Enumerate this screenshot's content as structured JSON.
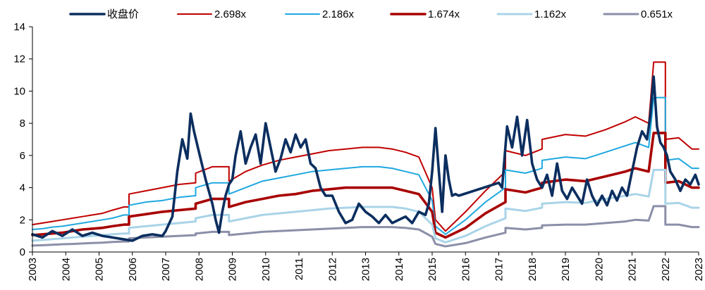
{
  "chart_data": {
    "type": "line",
    "x_unit": "year",
    "xlim": [
      2003,
      2023
    ],
    "ylim": [
      0,
      14
    ],
    "x_ticks": [
      "2003",
      "2004",
      "2005",
      "2006",
      "2007",
      "2008",
      "2009",
      "2010",
      "2011",
      "2012",
      "2013",
      "2014",
      "2015",
      "2016",
      "2017",
      "2018",
      "2019",
      "2020",
      "2021",
      "2022",
      "2023"
    ],
    "y_ticks": [
      "0",
      "2",
      "4",
      "6",
      "8",
      "10",
      "12",
      "14"
    ],
    "grid": false,
    "legend_position": "top",
    "series": [
      {
        "name": "收盘价",
        "color": "#0b2e5f",
        "width": 3.6,
        "x": [
          2003.0,
          2003.3,
          2003.6,
          2003.9,
          2004.2,
          2004.5,
          2004.8,
          2005.1,
          2005.4,
          2005.7,
          2006.0,
          2006.3,
          2006.6,
          2006.9,
          2007.0,
          2007.2,
          2007.35,
          2007.5,
          2007.65,
          2007.75,
          2007.85,
          2008.0,
          2008.2,
          2008.4,
          2008.5,
          2008.6,
          2008.7,
          2008.8,
          2008.9,
          2009.0,
          2009.1,
          2009.25,
          2009.4,
          2009.55,
          2009.7,
          2009.85,
          2010.0,
          2010.15,
          2010.3,
          2010.45,
          2010.6,
          2010.75,
          2010.9,
          2011.05,
          2011.2,
          2011.35,
          2011.5,
          2011.65,
          2011.8,
          2012.0,
          2012.2,
          2012.4,
          2012.6,
          2012.8,
          2013.0,
          2013.2,
          2013.4,
          2013.6,
          2013.8,
          2014.0,
          2014.2,
          2014.4,
          2014.6,
          2014.8,
          2014.9,
          2015.0,
          2015.1,
          2015.2,
          2015.3,
          2015.4,
          2015.5,
          2015.6,
          2015.7,
          2015.8,
          2017.0,
          2017.1,
          2017.25,
          2017.4,
          2017.55,
          2017.7,
          2017.85,
          2018.0,
          2018.15,
          2018.3,
          2018.45,
          2018.6,
          2018.75,
          2018.9,
          2019.05,
          2019.2,
          2019.35,
          2019.5,
          2019.65,
          2019.8,
          2019.95,
          2020.1,
          2020.25,
          2020.4,
          2020.55,
          2020.7,
          2020.85,
          2021.0,
          2021.15,
          2021.3,
          2021.45,
          2021.55,
          2021.65,
          2021.75,
          2021.85,
          2021.95,
          2022.05,
          2022.15,
          2022.3,
          2022.45,
          2022.6,
          2022.75,
          2022.9,
          2023.0
        ],
        "y": [
          1.1,
          0.9,
          1.3,
          1.0,
          1.4,
          1.0,
          1.2,
          1.0,
          0.9,
          0.8,
          0.7,
          1.0,
          1.1,
          1.0,
          1.3,
          2.2,
          5.0,
          7.0,
          5.8,
          8.6,
          7.5,
          6.2,
          4.5,
          3.0,
          2.0,
          1.2,
          2.5,
          3.5,
          4.2,
          4.5,
          6.0,
          7.5,
          5.5,
          6.5,
          7.3,
          5.5,
          8.0,
          6.5,
          5.0,
          5.8,
          7.0,
          6.2,
          7.3,
          6.5,
          7.0,
          5.5,
          5.2,
          4.0,
          3.5,
          3.5,
          2.5,
          1.8,
          2.0,
          3.0,
          2.5,
          2.2,
          1.8,
          2.3,
          1.8,
          2.0,
          2.2,
          1.8,
          2.5,
          2.3,
          3.0,
          5.0,
          7.7,
          5.0,
          2.5,
          6.0,
          4.5,
          3.5,
          3.6,
          3.5,
          4.3,
          4.0,
          7.8,
          6.5,
          8.4,
          6.0,
          8.2,
          5.5,
          4.5,
          4.0,
          4.8,
          3.5,
          5.5,
          3.8,
          3.3,
          4.0,
          3.5,
          3.0,
          4.5,
          3.5,
          2.9,
          3.5,
          2.9,
          3.8,
          3.2,
          4.0,
          3.5,
          5.0,
          6.5,
          7.5,
          7.0,
          8.5,
          10.9,
          7.8,
          6.8,
          6.5,
          6.0,
          5.0,
          4.5,
          3.8,
          4.5,
          4.2,
          4.8,
          4.2
        ]
      },
      {
        "name": "2.698x",
        "color": "#c00000",
        "width": 2.0,
        "x": [
          2003.0,
          2003.3,
          2003.6,
          2003.9,
          2004.2,
          2004.5,
          2004.8,
          2005.1,
          2005.4,
          2005.75,
          2005.9,
          2005.9,
          2006.4,
          2006.9,
          2007.4,
          2007.9,
          2007.9,
          2008.4,
          2008.9,
          2008.9,
          2009.4,
          2009.9,
          2010.4,
          2010.9,
          2011.4,
          2011.9,
          2012.4,
          2012.9,
          2013.4,
          2013.8,
          2014.2,
          2014.6,
          2015.0,
          2015.1,
          2015.4,
          2016.0,
          2016.6,
          2017.2,
          2017.2,
          2017.8,
          2018.3,
          2018.3,
          2019.0,
          2019.6,
          2020.2,
          2020.8,
          2021.1,
          2021.5,
          2021.65,
          2021.65,
          2022.0,
          2022.0,
          2022.4,
          2022.8,
          2023.0
        ],
        "y": [
          1.7,
          1.8,
          1.9,
          2.0,
          2.1,
          2.2,
          2.3,
          2.4,
          2.6,
          2.8,
          2.8,
          3.6,
          3.8,
          4.0,
          4.2,
          4.3,
          4.9,
          5.3,
          5.3,
          4.4,
          5.0,
          5.4,
          5.7,
          5.9,
          6.1,
          6.3,
          6.4,
          6.5,
          6.5,
          6.4,
          6.2,
          5.9,
          4.0,
          2.0,
          1.3,
          2.5,
          3.8,
          5.0,
          6.3,
          6.0,
          6.4,
          7.0,
          7.3,
          7.2,
          7.6,
          8.1,
          8.4,
          8.0,
          11.8,
          11.8,
          11.8,
          7.0,
          7.1,
          6.4,
          6.4
        ]
      },
      {
        "name": "2.186x",
        "color": "#1fa8e0",
        "width": 2.0,
        "x": [
          2003.0,
          2003.3,
          2003.6,
          2003.9,
          2004.2,
          2004.5,
          2004.8,
          2005.1,
          2005.4,
          2005.75,
          2005.9,
          2005.9,
          2006.4,
          2006.9,
          2007.4,
          2007.9,
          2007.9,
          2008.4,
          2008.9,
          2008.9,
          2009.4,
          2009.9,
          2010.4,
          2010.9,
          2011.4,
          2011.9,
          2012.4,
          2012.9,
          2013.4,
          2013.8,
          2014.2,
          2014.6,
          2015.0,
          2015.1,
          2015.4,
          2016.0,
          2016.6,
          2017.2,
          2017.2,
          2017.8,
          2018.3,
          2018.3,
          2019.0,
          2019.6,
          2020.2,
          2020.8,
          2021.1,
          2021.5,
          2021.65,
          2021.65,
          2022.0,
          2022.0,
          2022.4,
          2022.8,
          2023.0
        ],
        "y": [
          1.4,
          1.45,
          1.55,
          1.6,
          1.7,
          1.8,
          1.9,
          2.0,
          2.1,
          2.3,
          2.3,
          2.9,
          3.1,
          3.2,
          3.4,
          3.5,
          4.0,
          4.3,
          4.3,
          3.6,
          4.0,
          4.4,
          4.6,
          4.8,
          5.0,
          5.1,
          5.2,
          5.3,
          5.3,
          5.2,
          5.0,
          4.8,
          3.2,
          1.6,
          1.1,
          2.0,
          3.1,
          4.0,
          5.1,
          4.9,
          5.2,
          5.7,
          5.9,
          5.8,
          6.2,
          6.6,
          6.8,
          6.5,
          9.6,
          9.6,
          9.6,
          5.7,
          5.8,
          5.2,
          5.2
        ]
      },
      {
        "name": "1.674x",
        "color": "#a80000",
        "width": 3.6,
        "x": [
          2003.0,
          2003.3,
          2003.6,
          2003.9,
          2004.2,
          2004.5,
          2004.8,
          2005.1,
          2005.4,
          2005.75,
          2005.9,
          2005.9,
          2006.4,
          2006.9,
          2007.4,
          2007.9,
          2007.9,
          2008.4,
          2008.9,
          2008.9,
          2009.4,
          2009.9,
          2010.4,
          2010.9,
          2011.4,
          2011.9,
          2012.4,
          2012.9,
          2013.4,
          2013.8,
          2014.2,
          2014.6,
          2015.0,
          2015.1,
          2015.4,
          2016.0,
          2016.6,
          2017.2,
          2017.2,
          2017.8,
          2018.3,
          2018.3,
          2019.0,
          2019.6,
          2020.2,
          2020.8,
          2021.1,
          2021.5,
          2021.65,
          2021.65,
          2022.0,
          2022.0,
          2022.4,
          2022.8,
          2023.0
        ],
        "y": [
          1.05,
          1.1,
          1.15,
          1.2,
          1.3,
          1.4,
          1.45,
          1.5,
          1.6,
          1.7,
          1.7,
          2.2,
          2.35,
          2.5,
          2.6,
          2.7,
          3.0,
          3.3,
          3.3,
          2.8,
          3.1,
          3.3,
          3.5,
          3.6,
          3.8,
          3.9,
          4.0,
          4.0,
          4.0,
          4.0,
          3.8,
          3.6,
          2.5,
          1.2,
          0.9,
          1.5,
          2.4,
          3.1,
          3.9,
          3.7,
          4.0,
          4.3,
          4.5,
          4.4,
          4.7,
          5.0,
          5.2,
          5.0,
          7.4,
          7.4,
          7.4,
          4.3,
          4.4,
          4.0,
          4.0
        ]
      },
      {
        "name": "1.162x",
        "color": "#a9d4e8",
        "width": 3.0,
        "x": [
          2003.0,
          2003.3,
          2003.6,
          2003.9,
          2004.2,
          2004.5,
          2004.8,
          2005.1,
          2005.4,
          2005.75,
          2005.9,
          2005.9,
          2006.4,
          2006.9,
          2007.4,
          2007.9,
          2007.9,
          2008.4,
          2008.9,
          2008.9,
          2009.4,
          2009.9,
          2010.4,
          2010.9,
          2011.4,
          2011.9,
          2012.4,
          2012.9,
          2013.4,
          2013.8,
          2014.2,
          2014.6,
          2015.0,
          2015.1,
          2015.4,
          2016.0,
          2016.6,
          2017.2,
          2017.2,
          2017.8,
          2018.3,
          2018.3,
          2019.0,
          2019.6,
          2020.2,
          2020.8,
          2021.1,
          2021.5,
          2021.65,
          2021.65,
          2022.0,
          2022.0,
          2022.4,
          2022.8,
          2023.0
        ],
        "y": [
          0.7,
          0.75,
          0.8,
          0.85,
          0.9,
          0.95,
          1.0,
          1.05,
          1.1,
          1.15,
          1.15,
          1.5,
          1.6,
          1.7,
          1.8,
          1.9,
          2.1,
          2.3,
          2.3,
          1.9,
          2.1,
          2.3,
          2.4,
          2.5,
          2.6,
          2.7,
          2.75,
          2.8,
          2.8,
          2.8,
          2.7,
          2.5,
          1.7,
          0.85,
          0.6,
          1.0,
          1.6,
          2.1,
          2.7,
          2.55,
          2.75,
          3.0,
          3.1,
          3.05,
          3.3,
          3.5,
          3.6,
          3.45,
          5.1,
          5.1,
          5.1,
          3.0,
          3.05,
          2.75,
          2.75
        ]
      },
      {
        "name": "0.651x",
        "color": "#8b8fa8",
        "width": 3.0,
        "x": [
          2003.0,
          2003.3,
          2003.6,
          2003.9,
          2004.2,
          2004.5,
          2004.8,
          2005.1,
          2005.4,
          2005.75,
          2005.9,
          2005.9,
          2006.4,
          2006.9,
          2007.4,
          2007.9,
          2007.9,
          2008.4,
          2008.9,
          2008.9,
          2009.4,
          2009.9,
          2010.4,
          2010.9,
          2011.4,
          2011.9,
          2012.4,
          2012.9,
          2013.4,
          2013.8,
          2014.2,
          2014.6,
          2015.0,
          2015.1,
          2015.4,
          2016.0,
          2016.6,
          2017.2,
          2017.2,
          2017.8,
          2018.3,
          2018.3,
          2019.0,
          2019.6,
          2020.2,
          2020.8,
          2021.1,
          2021.5,
          2021.65,
          2021.65,
          2022.0,
          2022.0,
          2022.4,
          2022.8,
          2023.0
        ],
        "y": [
          0.4,
          0.42,
          0.45,
          0.48,
          0.5,
          0.53,
          0.56,
          0.58,
          0.62,
          0.65,
          0.65,
          0.85,
          0.9,
          0.95,
          1.0,
          1.05,
          1.15,
          1.25,
          1.25,
          1.05,
          1.15,
          1.25,
          1.3,
          1.35,
          1.4,
          1.45,
          1.5,
          1.55,
          1.55,
          1.55,
          1.5,
          1.4,
          0.95,
          0.5,
          0.35,
          0.55,
          0.9,
          1.2,
          1.5,
          1.4,
          1.5,
          1.65,
          1.7,
          1.7,
          1.8,
          1.9,
          2.0,
          1.95,
          2.85,
          2.85,
          2.85,
          1.7,
          1.7,
          1.55,
          1.55
        ]
      }
    ]
  }
}
